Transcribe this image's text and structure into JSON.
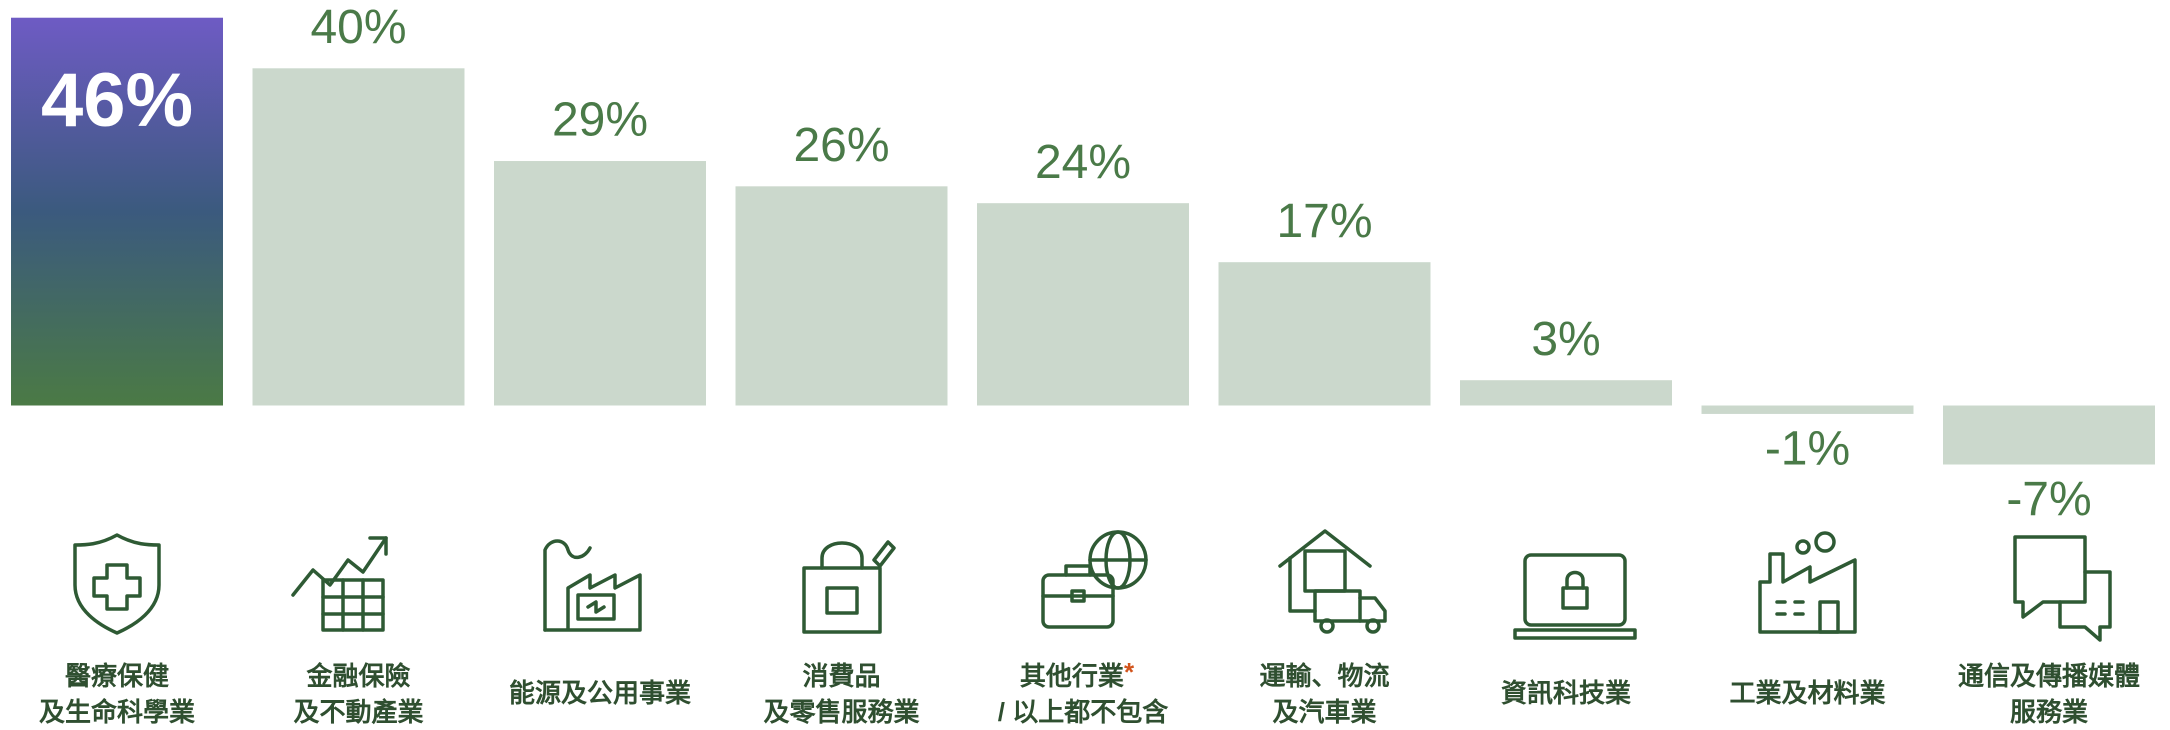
{
  "chart_data": {
    "type": "bar",
    "categories": [
      [
        "醫療保健",
        "及生命科學業"
      ],
      [
        "金融保險",
        "及不動產業"
      ],
      [
        "能源及公用事業"
      ],
      [
        "消費品",
        "及零售服務業"
      ],
      [
        "其他行業",
        "/ 以上都不包含"
      ],
      [
        "運輸、物流",
        "及汽車業"
      ],
      [
        "資訊科技業"
      ],
      [
        "工業及材料業"
      ],
      [
        "通信及傳播媒體",
        "服務業"
      ]
    ],
    "footnote_marker": "*",
    "values": [
      46,
      40,
      29,
      26,
      24,
      17,
      3,
      -1,
      -7
    ],
    "value_labels": [
      "46%",
      "40%",
      "29%",
      "26%",
      "24%",
      "17%",
      "3%",
      "-1%",
      "-7%"
    ],
    "color": "#cbd8cc",
    "highlight_colors": [
      "#6e5bc4",
      "#3b5a7e",
      "#4b7a45"
    ],
    "label_color": "#4a7a48",
    "marker_color": "#d2541c"
  }
}
